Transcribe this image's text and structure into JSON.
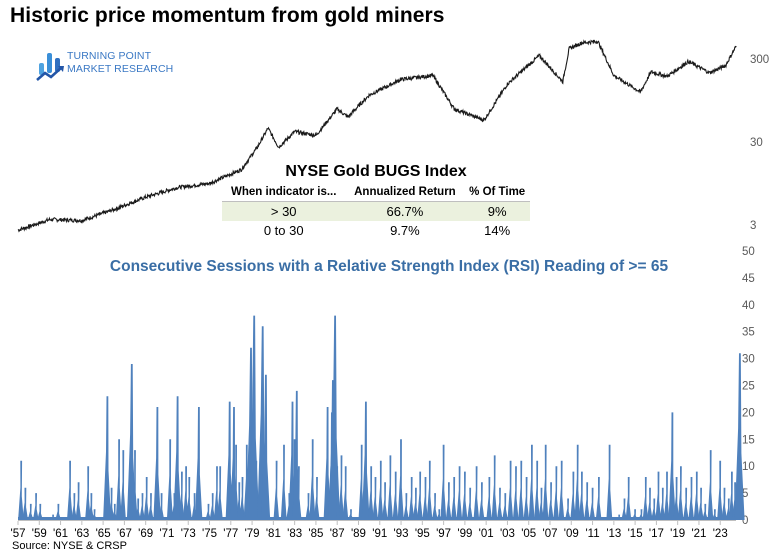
{
  "title": "Historic price momentum from gold miners",
  "logo": {
    "line1": "TURNING POINT",
    "line2": "MARKET RESEARCH",
    "color": "#3a78c4"
  },
  "table": {
    "title": "NYSE Gold BUGS Index",
    "headers": [
      "When indicator is...",
      "Annualized Return",
      "% Of Time"
    ],
    "rows": [
      [
        "> 30",
        "66.7%",
        "9%"
      ],
      [
        "0 to 30",
        "9.7%",
        "14%"
      ]
    ],
    "shade_color": "#ebf1de"
  },
  "rsi_title": "Consecutive Sessions with a Relative Strength Index (RSI) Reading of >= 65",
  "source": "Source: NYSE & CRSP",
  "colors": {
    "bars": "#4f81bd",
    "price_line": "#1a1a1a",
    "rsi_title": "#3a6ea5",
    "axis_text": "#595959"
  },
  "chart_data": [
    {
      "type": "line",
      "title": "NYSE Gold BUGS Index (log scale)",
      "yscale": "log",
      "ylabel": "",
      "yticks": [
        3,
        30,
        300
      ],
      "x": [
        1957,
        1960,
        1963,
        1966,
        1969,
        1972,
        1975,
        1978,
        1979.5,
        1980.5,
        1981.5,
        1983,
        1985,
        1987,
        1988,
        1990,
        1993,
        1996,
        1998,
        2000.8,
        2003,
        2006,
        2008.2,
        2008.8,
        2010,
        2011.5,
        2013,
        2015.5,
        2016.5,
        2018,
        2020,
        2022,
        2023.5,
        2024.5
      ],
      "values": [
        2.6,
        3.5,
        3.4,
        4.6,
        6.5,
        8.5,
        9.5,
        14,
        26,
        44,
        26,
        40,
        36,
        75,
        60,
        110,
        170,
        190,
        75,
        55,
        150,
        330,
        160,
        400,
        470,
        490,
        190,
        120,
        210,
        185,
        280,
        205,
        250,
        430
      ]
    },
    {
      "type": "bar",
      "title": "Consecutive Sessions with a Relative Strength Index (RSI) Reading of >= 65",
      "xlabel": "",
      "ylabel": "",
      "ylim": [
        0,
        50
      ],
      "yticks": [
        0,
        5,
        10,
        15,
        20,
        25,
        30,
        35,
        40,
        45,
        50
      ],
      "xtick_labels": [
        "'57",
        "'59",
        "'61",
        "'63",
        "'65",
        "'67",
        "'69",
        "'71",
        "'73",
        "'75",
        "'77",
        "'79",
        "'81",
        "'83",
        "'85",
        "'87",
        "'89",
        "'91",
        "'93",
        "'95",
        "'97",
        "'99",
        "'01",
        "'03",
        "'05",
        "'07",
        "'09",
        "'11",
        "'13",
        "'15",
        "'17",
        "'19",
        "'21",
        "'23"
      ],
      "peaks": [
        {
          "year": 1957.3,
          "value": 11
        },
        {
          "year": 1957.7,
          "value": 6
        },
        {
          "year": 1958.2,
          "value": 3
        },
        {
          "year": 1958.7,
          "value": 5
        },
        {
          "year": 1959.1,
          "value": 3
        },
        {
          "year": 1960.3,
          "value": 1
        },
        {
          "year": 1960.8,
          "value": 3
        },
        {
          "year": 1961.9,
          "value": 11
        },
        {
          "year": 1962.3,
          "value": 5
        },
        {
          "year": 1962.7,
          "value": 7
        },
        {
          "year": 1963.6,
          "value": 10
        },
        {
          "year": 1963.9,
          "value": 5
        },
        {
          "year": 1964.2,
          "value": 2
        },
        {
          "year": 1965.4,
          "value": 23
        },
        {
          "year": 1965.8,
          "value": 6
        },
        {
          "year": 1966.1,
          "value": 3
        },
        {
          "year": 1966.5,
          "value": 15
        },
        {
          "year": 1966.9,
          "value": 13
        },
        {
          "year": 1967.7,
          "value": 29
        },
        {
          "year": 1968.0,
          "value": 13
        },
        {
          "year": 1968.3,
          "value": 4
        },
        {
          "year": 1968.7,
          "value": 5
        },
        {
          "year": 1969.1,
          "value": 8
        },
        {
          "year": 1969.5,
          "value": 5
        },
        {
          "year": 1970.1,
          "value": 21
        },
        {
          "year": 1970.5,
          "value": 5
        },
        {
          "year": 1971.3,
          "value": 15
        },
        {
          "year": 1971.7,
          "value": 5
        },
        {
          "year": 1972.0,
          "value": 23
        },
        {
          "year": 1972.4,
          "value": 9
        },
        {
          "year": 1972.8,
          "value": 10
        },
        {
          "year": 1973.1,
          "value": 8
        },
        {
          "year": 1973.6,
          "value": 5
        },
        {
          "year": 1974.0,
          "value": 21
        },
        {
          "year": 1974.9,
          "value": 3
        },
        {
          "year": 1975.3,
          "value": 5
        },
        {
          "year": 1975.7,
          "value": 10
        },
        {
          "year": 1976.0,
          "value": 10
        },
        {
          "year": 1976.9,
          "value": 22
        },
        {
          "year": 1977.5,
          "value": 14
        },
        {
          "year": 1977.8,
          "value": 7
        },
        {
          "year": 1978.1,
          "value": 8
        },
        {
          "year": 1978.5,
          "value": 14
        },
        {
          "year": 1979.0,
          "value": 7
        },
        {
          "year": 1979.4,
          "value": 11
        },
        {
          "year": 1979.8,
          "value": 5
        },
        {
          "year": 1980.4,
          "value": 5
        },
        {
          "year": 1981.3,
          "value": 11
        },
        {
          "year": 1982.0,
          "value": 14
        },
        {
          "year": 1982.5,
          "value": 5
        },
        {
          "year": 1983.0,
          "value": 15
        },
        {
          "year": 1983.4,
          "value": 10
        },
        {
          "year": 1984.3,
          "value": 5
        },
        {
          "year": 1984.7,
          "value": 15
        },
        {
          "year": 1985.1,
          "value": 8
        },
        {
          "year": 1986.1,
          "value": 21
        },
        {
          "year": 1986.5,
          "value": 20
        },
        {
          "year": 1987.0,
          "value": 10
        },
        {
          "year": 1987.4,
          "value": 12
        },
        {
          "year": 1987.8,
          "value": 10
        },
        {
          "year": 1977.3,
          "value": 21
        },
        {
          "year": 1978.9,
          "value": 32
        },
        {
          "year": 1979.2,
          "value": 38
        },
        {
          "year": 1980.0,
          "value": 36
        },
        {
          "year": 1980.3,
          "value": 27
        },
        {
          "year": 1982.8,
          "value": 22
        },
        {
          "year": 1983.2,
          "value": 24
        },
        {
          "year": 1986.8,
          "value": 38
        },
        {
          "year": 1986.6,
          "value": 26
        },
        {
          "year": 1988.3,
          "value": 2
        },
        {
          "year": 1989.3,
          "value": 14
        },
        {
          "year": 1989.7,
          "value": 22
        },
        {
          "year": 1990.2,
          "value": 10
        },
        {
          "year": 1990.6,
          "value": 8
        },
        {
          "year": 1991.1,
          "value": 11
        },
        {
          "year": 1991.5,
          "value": 7
        },
        {
          "year": 1992.0,
          "value": 12
        },
        {
          "year": 1992.5,
          "value": 9
        },
        {
          "year": 1993.0,
          "value": 15
        },
        {
          "year": 1993.5,
          "value": 5
        },
        {
          "year": 1994.0,
          "value": 8
        },
        {
          "year": 1994.4,
          "value": 6
        },
        {
          "year": 1994.8,
          "value": 9
        },
        {
          "year": 1995.3,
          "value": 8
        },
        {
          "year": 1995.7,
          "value": 11
        },
        {
          "year": 1996.2,
          "value": 5
        },
        {
          "year": 1996.6,
          "value": 2
        },
        {
          "year": 1997.0,
          "value": 14
        },
        {
          "year": 1997.5,
          "value": 7
        },
        {
          "year": 1998.0,
          "value": 8
        },
        {
          "year": 1998.5,
          "value": 10
        },
        {
          "year": 1999.0,
          "value": 9
        },
        {
          "year": 1999.5,
          "value": 6
        },
        {
          "year": 2000.1,
          "value": 10
        },
        {
          "year": 2000.6,
          "value": 7
        },
        {
          "year": 2001.3,
          "value": 8
        },
        {
          "year": 2001.8,
          "value": 12
        },
        {
          "year": 2002.3,
          "value": 6
        },
        {
          "year": 2002.8,
          "value": 5
        },
        {
          "year": 2003.3,
          "value": 11
        },
        {
          "year": 2003.8,
          "value": 10
        },
        {
          "year": 2004.3,
          "value": 11
        },
        {
          "year": 2004.8,
          "value": 8
        },
        {
          "year": 2005.3,
          "value": 14
        },
        {
          "year": 2005.8,
          "value": 11
        },
        {
          "year": 2006.2,
          "value": 6
        },
        {
          "year": 2006.6,
          "value": 14
        },
        {
          "year": 2007.1,
          "value": 7
        },
        {
          "year": 2007.6,
          "value": 10
        },
        {
          "year": 2008.1,
          "value": 11
        },
        {
          "year": 2008.7,
          "value": 4
        },
        {
          "year": 2009.2,
          "value": 9
        },
        {
          "year": 2009.6,
          "value": 14
        },
        {
          "year": 2010.0,
          "value": 9
        },
        {
          "year": 2010.5,
          "value": 7
        },
        {
          "year": 2011.0,
          "value": 6
        },
        {
          "year": 2011.6,
          "value": 8
        },
        {
          "year": 2012.6,
          "value": 14
        },
        {
          "year": 2013.5,
          "value": 1
        },
        {
          "year": 2014.0,
          "value": 4
        },
        {
          "year": 2014.4,
          "value": 8
        },
        {
          "year": 2015.0,
          "value": 2
        },
        {
          "year": 2015.6,
          "value": 2
        },
        {
          "year": 2016.0,
          "value": 8
        },
        {
          "year": 2016.4,
          "value": 6
        },
        {
          "year": 2016.8,
          "value": 4
        },
        {
          "year": 2017.2,
          "value": 9
        },
        {
          "year": 2017.6,
          "value": 6
        },
        {
          "year": 2018.0,
          "value": 9
        },
        {
          "year": 2018.5,
          "value": 20
        },
        {
          "year": 2018.9,
          "value": 8
        },
        {
          "year": 2019.3,
          "value": 10
        },
        {
          "year": 2019.8,
          "value": 6
        },
        {
          "year": 2020.3,
          "value": 8
        },
        {
          "year": 2020.8,
          "value": 9
        },
        {
          "year": 2021.2,
          "value": 6
        },
        {
          "year": 2021.6,
          "value": 3
        },
        {
          "year": 2022.1,
          "value": 13
        },
        {
          "year": 2022.5,
          "value": 2
        },
        {
          "year": 2023.0,
          "value": 11
        },
        {
          "year": 2023.4,
          "value": 6
        },
        {
          "year": 2023.8,
          "value": 4
        },
        {
          "year": 2024.1,
          "value": 9
        },
        {
          "year": 2024.4,
          "value": 7
        },
        {
          "year": 2024.7,
          "value": 10
        },
        {
          "year": 2024.85,
          "value": 31
        }
      ]
    }
  ]
}
